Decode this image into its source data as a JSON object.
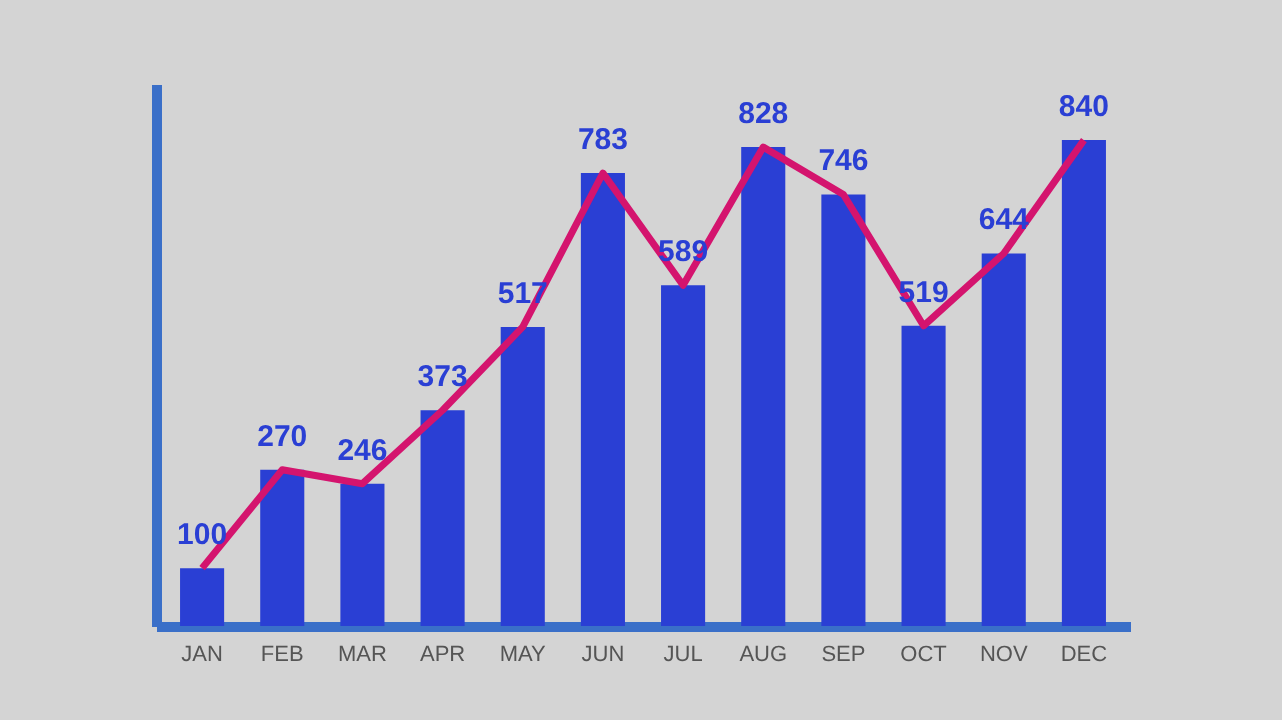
{
  "chart_data": {
    "type": "bar",
    "categories": [
      "JAN",
      "FEB",
      "MAR",
      "APR",
      "MAY",
      "JUN",
      "JUL",
      "AUG",
      "SEP",
      "OCT",
      "NOV",
      "DEC"
    ],
    "series": [
      {
        "color": "#2a3fd4",
        "values": [
          100,
          270,
          246,
          373,
          517,
          783,
          589,
          828,
          746,
          519,
          644,
          840
        ],
        "value_labels": [
          "100",
          "270",
          "246",
          "373",
          "517",
          "783",
          "589",
          "828",
          "746",
          "519",
          "644",
          "840"
        ]
      },
      {
        "type": "line",
        "color": "#d4146e",
        "values": [
          100,
          270,
          246,
          373,
          517,
          783,
          589,
          828,
          746,
          519,
          644,
          840
        ]
      }
    ],
    "ylim": [
      0,
      937
    ],
    "tick_labels": "x",
    "grid": false,
    "marker": "none",
    "line_style": "solid"
  }
}
